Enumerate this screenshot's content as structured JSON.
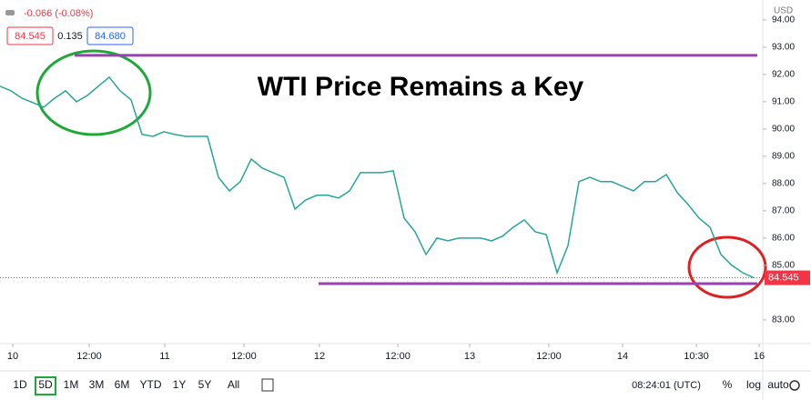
{
  "chart_data": {
    "type": "line",
    "currency": "USD",
    "header": {
      "change": "-0.066 (-0.08%)",
      "bid": "84.545",
      "spread": "0.135",
      "ask": "84.680"
    },
    "annotation": "WTI Price Remains a Key",
    "last_price_label": "84.545",
    "color": "#26a69a",
    "level_color": "#9c3fb0",
    "levels": [
      92.7,
      84.33
    ],
    "values": [
      91.57,
      91.4,
      91.13,
      90.97,
      90.8,
      91.13,
      91.4,
      91.0,
      91.23,
      91.57,
      91.9,
      91.4,
      91.07,
      89.8,
      89.73,
      89.9,
      89.8,
      89.73,
      89.73,
      89.73,
      88.23,
      87.73,
      88.07,
      88.9,
      88.57,
      88.4,
      88.23,
      87.07,
      87.4,
      87.57,
      87.57,
      87.47,
      87.73,
      88.4,
      88.4,
      88.4,
      88.47,
      86.73,
      86.23,
      85.4,
      86.0,
      85.9,
      86.0,
      86.0,
      86.0,
      85.9,
      86.07,
      86.4,
      86.67,
      86.23,
      86.13,
      84.73,
      85.73,
      88.07,
      88.23,
      88.07,
      88.07,
      87.9,
      87.73,
      88.07,
      88.07,
      88.33,
      87.67,
      87.23,
      86.73,
      86.4,
      85.4,
      85.0,
      84.73,
      84.545
    ],
    "xlim": [
      0,
      69.83
    ],
    "xticks": [
      {
        "value": 1.17,
        "label": "10"
      },
      {
        "value": 8.17,
        "label": "12:00"
      },
      {
        "value": 15.08,
        "label": "11"
      },
      {
        "value": 22.33,
        "label": "12:00"
      },
      {
        "value": 29.25,
        "label": "12"
      },
      {
        "value": 36.42,
        "label": "12:00"
      },
      {
        "value": 43,
        "label": "13"
      },
      {
        "value": 50.25,
        "label": "12:00"
      },
      {
        "value": 57,
        "label": "14"
      },
      {
        "value": 63.75,
        "label": "10:30"
      },
      {
        "value": 69.5,
        "label": "16"
      }
    ],
    "ylim": [
      82.13,
      94.73
    ],
    "yticks": [
      {
        "value": 83,
        "label": "83.00"
      },
      {
        "value": 85,
        "label": "85.00"
      },
      {
        "value": 86,
        "label": "86.00"
      },
      {
        "value": 87,
        "label": "87.00"
      },
      {
        "value": 88,
        "label": "88.00"
      },
      {
        "value": 89,
        "label": "89.00"
      },
      {
        "value": 90,
        "label": "90.00"
      },
      {
        "value": 91,
        "label": "91.00"
      },
      {
        "value": 92,
        "label": "92.00"
      },
      {
        "value": 93,
        "label": "93.00"
      },
      {
        "value": 94,
        "label": "94.00"
      }
    ],
    "ranges": [
      "1D",
      "5D",
      "1M",
      "3M",
      "6M",
      "YTD",
      "1Y",
      "5Y",
      "All"
    ],
    "active_range": 1,
    "clock": "08:24:01 (UTC)",
    "scale_options": [
      "%",
      "log",
      "auto"
    ]
  }
}
